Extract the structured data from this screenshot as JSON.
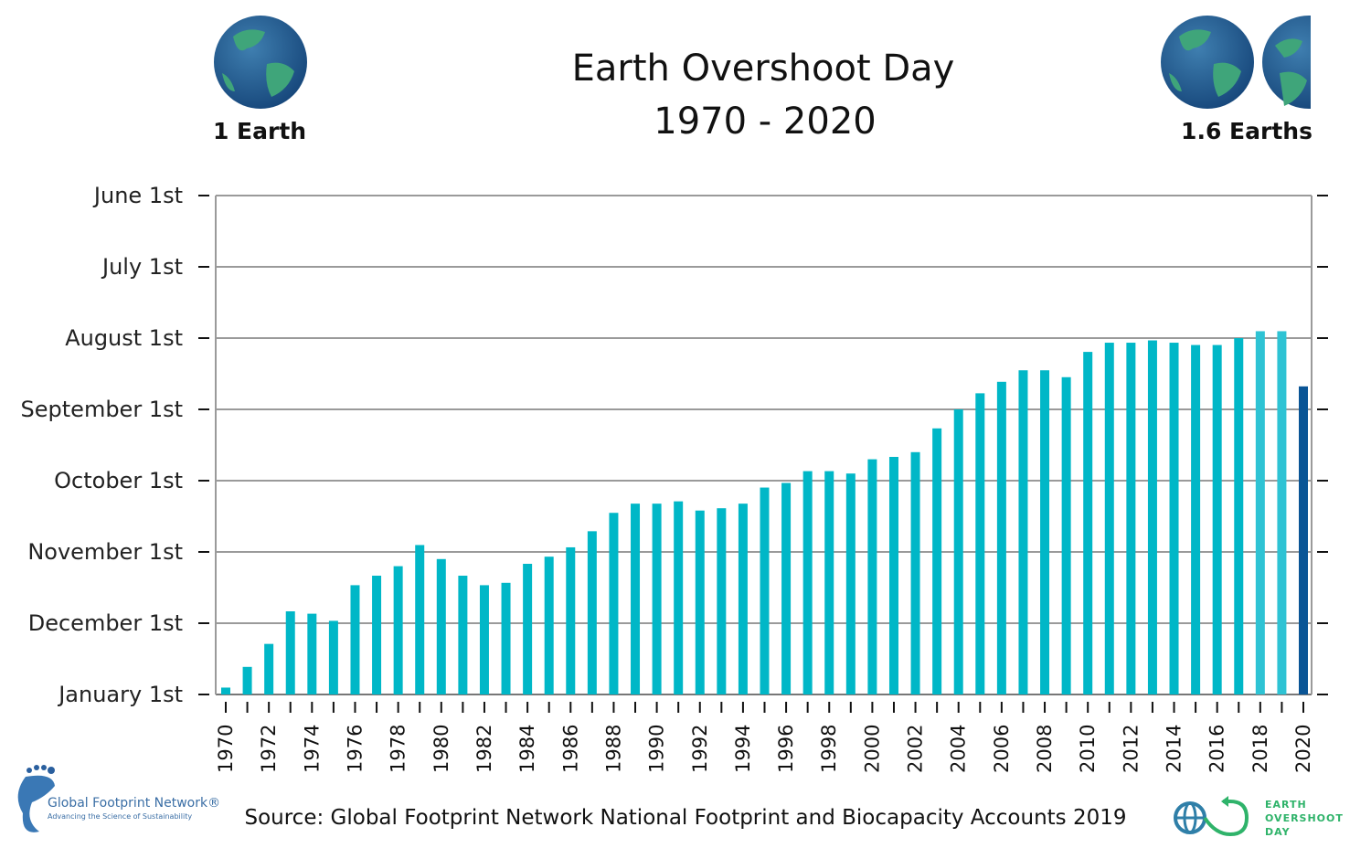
{
  "chart_data": {
    "type": "bar",
    "title": "Earth Overshoot Day",
    "subtitle": "1970 - 2020",
    "y_axis": {
      "tick_labels": [
        "June 1st",
        "July 1st",
        "August 1st",
        "September 1st",
        "October 1st",
        "November 1st",
        "December 1st",
        "January 1st"
      ],
      "direction": "later dates at bottom",
      "range": [
        "Jun 1",
        "Jan 1 (next year)"
      ],
      "grid": true
    },
    "x_tick_labels": [
      "1970",
      "1972",
      "1974",
      "1976",
      "1978",
      "1980",
      "1982",
      "1984",
      "1986",
      "1988",
      "1990",
      "1992",
      "1994",
      "1996",
      "1998",
      "2000",
      "2002",
      "2004",
      "2006",
      "2008",
      "2010",
      "2012",
      "2014",
      "2016",
      "2018",
      "2020"
    ],
    "categories": [
      1970,
      1971,
      1972,
      1973,
      1974,
      1975,
      1976,
      1977,
      1978,
      1979,
      1980,
      1981,
      1982,
      1983,
      1984,
      1985,
      1986,
      1987,
      1988,
      1989,
      1990,
      1991,
      1992,
      1993,
      1994,
      1995,
      1996,
      1997,
      1998,
      1999,
      2000,
      2001,
      2002,
      2003,
      2004,
      2005,
      2006,
      2007,
      2008,
      2009,
      2010,
      2011,
      2012,
      2013,
      2014,
      2015,
      2016,
      2017,
      2018,
      2019,
      2020
    ],
    "values": [
      "Dec 29",
      "Dec 20",
      "Dec 10",
      "Nov 26",
      "Nov 27",
      "Nov 30",
      "Nov 15",
      "Nov 11",
      "Nov 7",
      "Oct 29",
      "Nov 4",
      "Nov 11",
      "Nov 15",
      "Nov 14",
      "Nov 6",
      "Nov 3",
      "Oct 30",
      "Oct 23",
      "Oct 15",
      "Oct 11",
      "Oct 11",
      "Oct 10",
      "Oct 14",
      "Oct 13",
      "Oct 11",
      "Oct 4",
      "Oct 2",
      "Sep 27",
      "Sep 27",
      "Sep 28",
      "Sep 22",
      "Sep 21",
      "Sep 19",
      "Sep 9",
      "Sep 1",
      "Aug 25",
      "Aug 20",
      "Aug 15",
      "Aug 15",
      "Aug 18",
      "Aug 7",
      "Aug 3",
      "Aug 3",
      "Aug 2",
      "Aug 3",
      "Aug 4",
      "Aug 4",
      "Aug 1",
      "Jul 29",
      "Jul 29",
      "Aug 22"
    ],
    "colors": {
      "default": "#00b7c7",
      "2018": "#2ec3d4",
      "2019": "#2ec3d4",
      "2020": "#0a5596"
    }
  },
  "header": {
    "left_label": "1 Earth",
    "right_label": "1.6 Earths",
    "left_icon": "globe-icon",
    "right_icon": "globe-icon"
  },
  "footer": {
    "source": "Source: Global Footprint Network National Footprint and Biocapacity Accounts 2019",
    "gfn_logo": {
      "name": "Global Footprint Network®",
      "tagline": "Advancing the Science of Sustainability"
    },
    "eod_logo": [
      "EARTH",
      "OVERSHOOT",
      "DAY"
    ]
  }
}
